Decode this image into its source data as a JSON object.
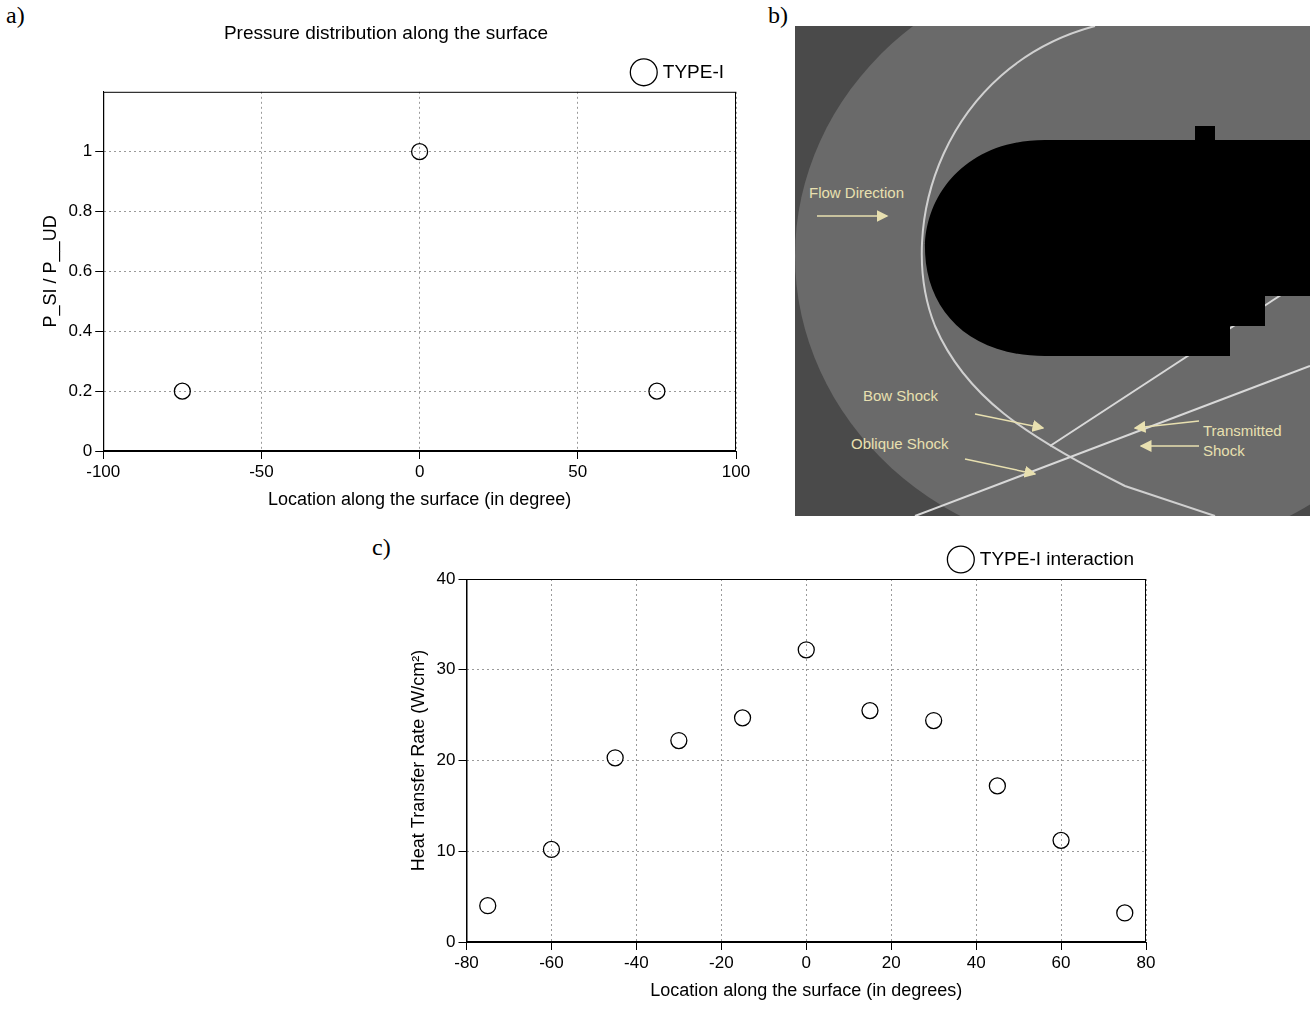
{
  "chart_data": [
    {
      "panel": "a)",
      "type": "scatter",
      "title": "Pressure distribution along the surface",
      "x_label": "Location along the surface (in degree)",
      "y_label": "P_SI / P__UD",
      "series": [
        {
          "name": "TYPE-I",
          "color": "#000000",
          "marker": "open circle",
          "x": [
            -75,
            0,
            75
          ],
          "values": [
            0.2,
            1,
            0.2
          ]
        }
      ],
      "xlim": [
        -100,
        100
      ],
      "xticks": [
        -100,
        -50,
        0,
        50,
        100
      ],
      "ylim": [
        0,
        1.2
      ],
      "yticks": [
        0,
        0.2,
        0.4,
        0.6,
        0.8,
        1
      ],
      "grid": true,
      "legend": "top right"
    },
    {
      "panel": "c)",
      "type": "scatter",
      "x_label": "Location along the surface (in degrees)",
      "y_label": "Heat Transfer Rate (W/cm²)",
      "series": [
        {
          "name": "TYPE-I interaction",
          "color": "#000000",
          "marker": "open circle",
          "x": [
            -75,
            -60,
            -45,
            -30,
            -15,
            0,
            15,
            30,
            45,
            60,
            75
          ],
          "values": [
            4,
            10.2,
            20.3,
            22.2,
            24.7,
            32.2,
            25.5,
            24.4,
            17.2,
            11.2,
            3.2
          ]
        }
      ],
      "xlim": [
        -80,
        80
      ],
      "xticks": [
        -80,
        -60,
        -40,
        -20,
        0,
        20,
        40,
        60,
        80
      ],
      "ylim": [
        0,
        40
      ],
      "yticks": [
        0,
        10,
        20,
        30,
        40
      ],
      "grid": true,
      "legend": "top right"
    }
  ],
  "image": {
    "panel": "b)",
    "annotations": [
      "Flow Direction",
      "Bow Shock",
      "Oblique Shock",
      "Transmitted Shock"
    ]
  }
}
